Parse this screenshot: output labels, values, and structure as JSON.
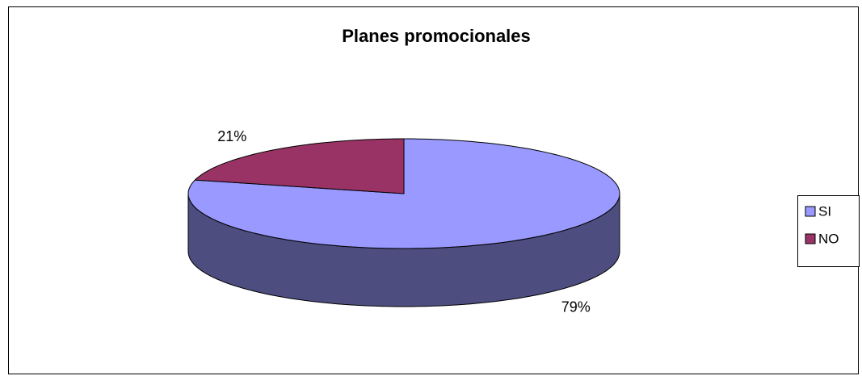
{
  "chart_data": {
    "type": "pie",
    "title": "Planes promocionales",
    "categories": [
      "SI",
      "NO"
    ],
    "values": [
      79,
      21
    ],
    "value_labels": [
      "79%",
      "21%"
    ],
    "colors": [
      "#9999ff",
      "#993366"
    ],
    "legend": "right"
  }
}
